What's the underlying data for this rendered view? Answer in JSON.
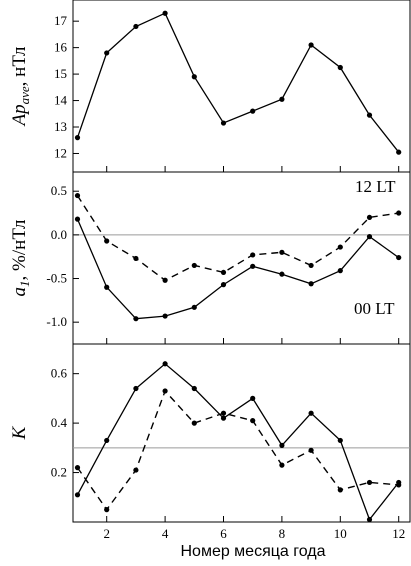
{
  "chart_data": [
    {
      "type": "line",
      "ylabel_main": "Ap",
      "ylabel_sub": "ave",
      "ylabel_unit": ", нТл",
      "x": [
        1,
        2,
        3,
        4,
        5,
        6,
        7,
        8,
        9,
        10,
        11,
        12
      ],
      "series": [
        {
          "style": "solid",
          "values": [
            12.6,
            15.8,
            16.8,
            17.3,
            14.9,
            13.15,
            13.6,
            14.05,
            16.1,
            15.25,
            13.45,
            12.05
          ]
        }
      ],
      "ylim": [
        11.3,
        17.8
      ],
      "yticks": [
        "12",
        "13",
        "14",
        "15",
        "16",
        "17"
      ]
    },
    {
      "type": "line",
      "ylabel_main": "a",
      "ylabel_sub": "1",
      "ylabel_unit": ", %/нТл",
      "x": [
        1,
        2,
        3,
        4,
        5,
        6,
        7,
        8,
        9,
        10,
        11,
        12
      ],
      "series": [
        {
          "style": "dashed",
          "values": [
            0.45,
            -0.07,
            -0.27,
            -0.52,
            -0.35,
            -0.43,
            -0.23,
            -0.2,
            -0.35,
            -0.14,
            0.2,
            0.25
          ]
        },
        {
          "style": "solid",
          "values": [
            0.18,
            -0.6,
            -0.96,
            -0.93,
            -0.83,
            -0.57,
            -0.36,
            -0.45,
            -0.56,
            -0.41,
            -0.02,
            -0.26
          ]
        }
      ],
      "ylim": [
        -1.25,
        0.72
      ],
      "yticks": [
        "-1.0",
        "-0.5",
        "0.0",
        "0.5"
      ],
      "annotations": [
        "12 LT",
        "00 LT"
      ]
    },
    {
      "type": "line",
      "ylabel_main": "K",
      "x": [
        1,
        2,
        3,
        4,
        5,
        6,
        7,
        8,
        9,
        10,
        11,
        12
      ],
      "xlabel": "Номер месяца года",
      "xticks": [
        "2",
        "4",
        "6",
        "8",
        "10",
        "12"
      ],
      "series": [
        {
          "style": "solid",
          "values": [
            0.11,
            0.33,
            0.54,
            0.64,
            0.54,
            0.42,
            0.5,
            0.31,
            0.44,
            0.33,
            0.01,
            0.16
          ]
        },
        {
          "style": "dashed",
          "values": [
            0.22,
            0.05,
            0.21,
            0.53,
            0.4,
            0.44,
            0.41,
            0.23,
            0.29,
            0.13,
            0.16,
            0.15
          ]
        }
      ],
      "ylim": [
        0.0,
        0.72
      ],
      "yticks": [
        "0.2",
        "0.4",
        "0.6"
      ]
    }
  ]
}
